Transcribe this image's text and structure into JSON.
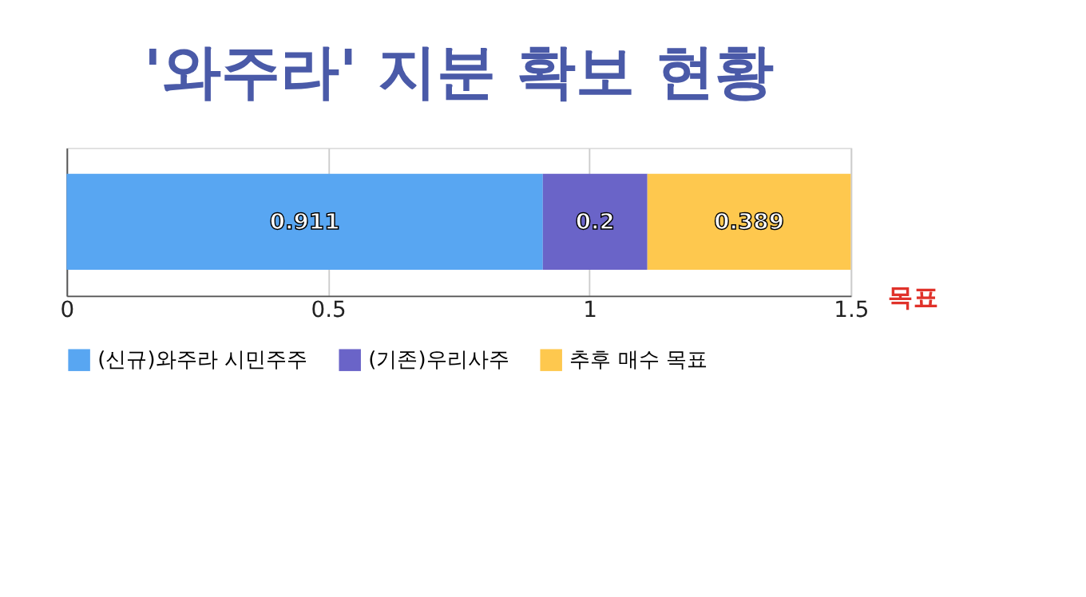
{
  "chart_data": {
    "type": "bar",
    "title": "'와주라' 지분 확보 현황",
    "orientation": "horizontal",
    "stacked": true,
    "categories": [
      null
    ],
    "series": [
      {
        "name": "(신규)와주라 시민주주",
        "color": "#58a6f2",
        "values": [
          0.911
        ]
      },
      {
        "name": "(기존)우리사주",
        "color": "#6a64c8",
        "values": [
          0.2
        ]
      },
      {
        "name": "추후 매수 목표",
        "color": "#fec84e",
        "values": [
          0.389
        ]
      }
    ],
    "xlim": [
      0,
      1.5
    ],
    "xticks": [
      0,
      0.5,
      1,
      1.5
    ],
    "grid": "x",
    "legend": "bottom",
    "data_labels": true,
    "annotations": [
      "목표"
    ]
  }
}
